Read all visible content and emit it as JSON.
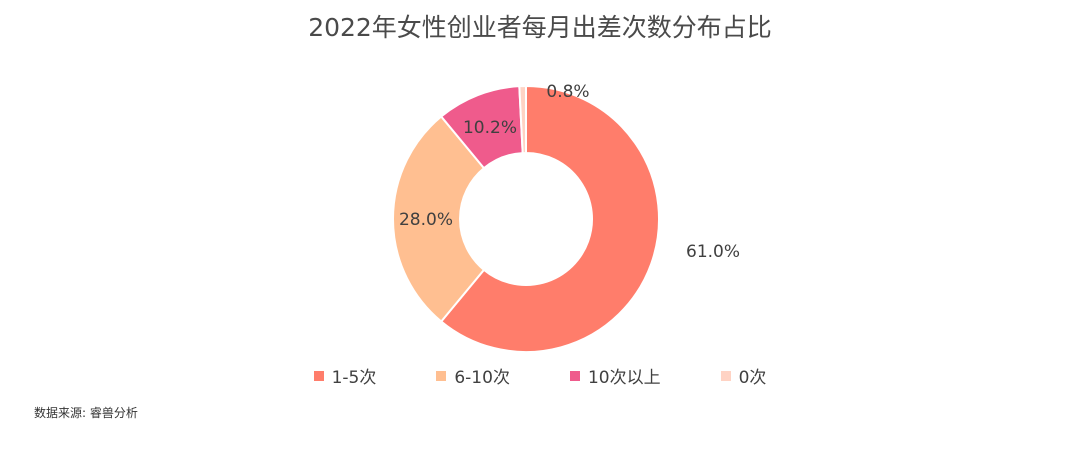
{
  "chart_data": {
    "type": "pie",
    "title": "2022年女性创业者每月出差次数分布占比",
    "categories": [
      "1-5次",
      "6-10次",
      "10次以上",
      "0次"
    ],
    "values": [
      61.0,
      28.0,
      10.2,
      0.8
    ],
    "labels": [
      "61.0%",
      "28.0%",
      "10.2%",
      "0.8%"
    ],
    "colors": [
      "#ff7d6b",
      "#ffbf91",
      "#ef5b8c",
      "#ffd3c4"
    ],
    "donut": true,
    "legend": "bottom"
  },
  "source": "数据来源: 睿兽分析"
}
